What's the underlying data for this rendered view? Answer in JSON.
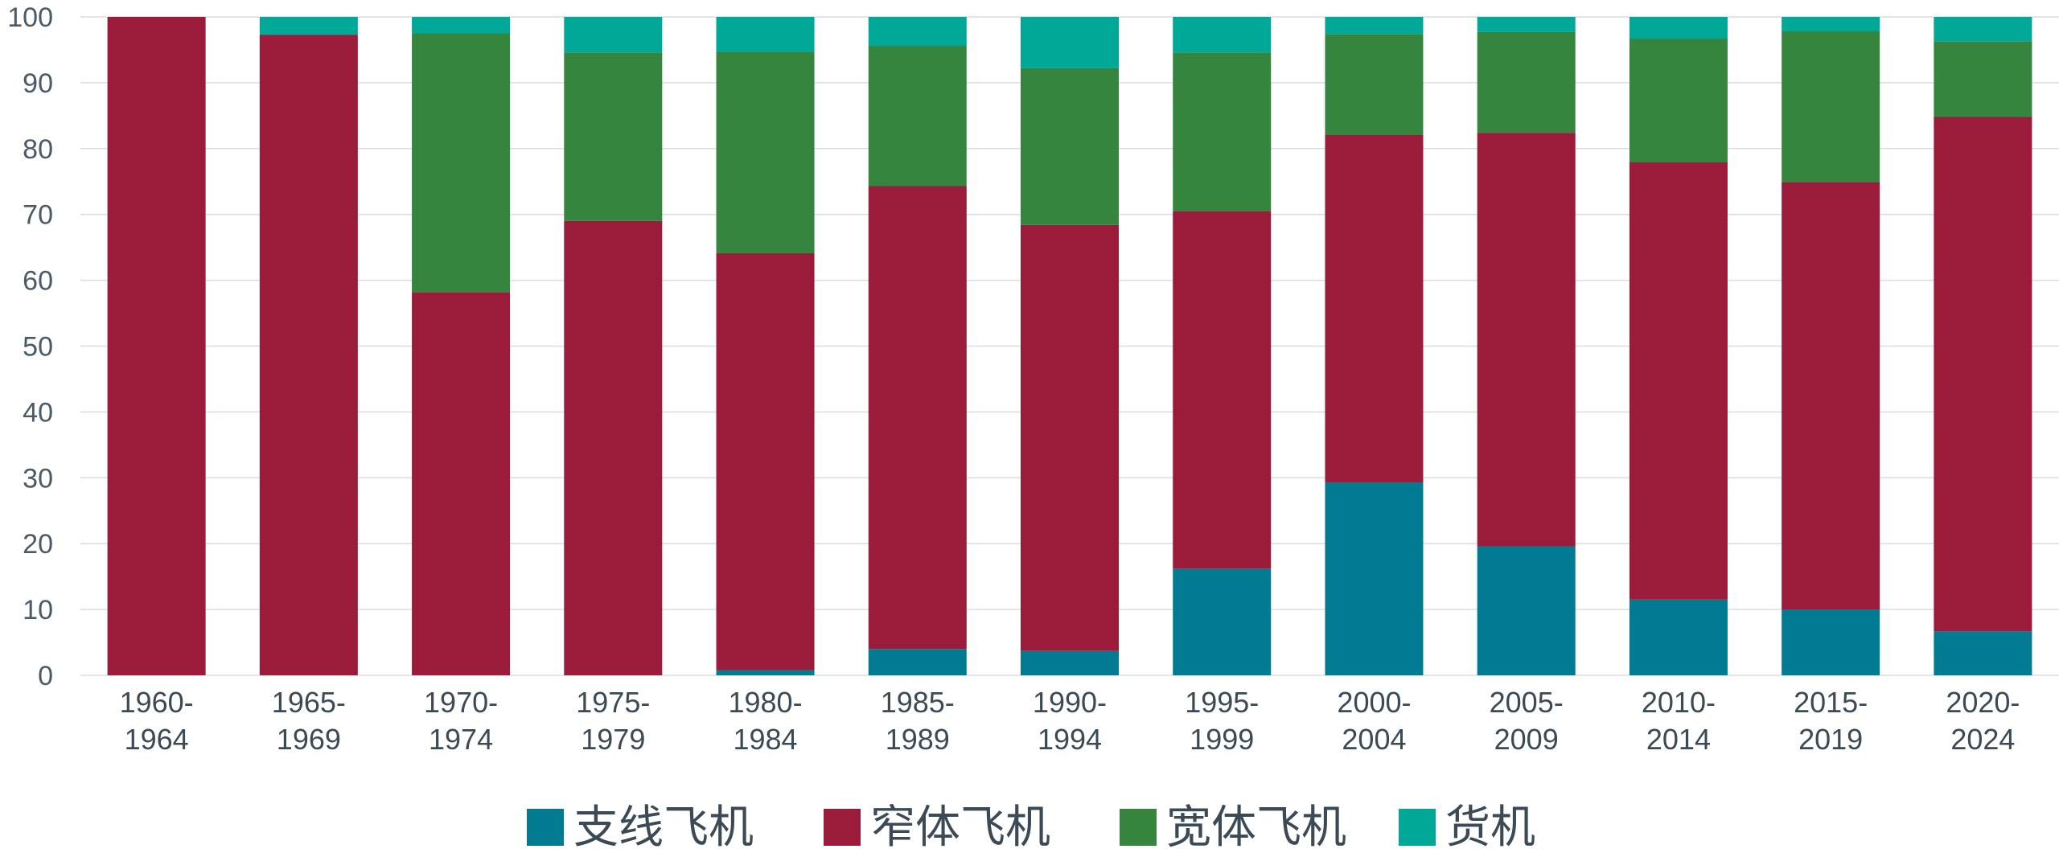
{
  "chart_data": {
    "type": "bar",
    "stacked": true,
    "categories": [
      [
        "1960-",
        "1964"
      ],
      [
        "1965-",
        "1969"
      ],
      [
        "1970-",
        "1974"
      ],
      [
        "1975-",
        "1979"
      ],
      [
        "1980-",
        "1984"
      ],
      [
        "1985-",
        "1989"
      ],
      [
        "1990-",
        "1994"
      ],
      [
        "1995-",
        "1999"
      ],
      [
        "2000-",
        "2004"
      ],
      [
        "2005-",
        "2009"
      ],
      [
        "2010-",
        "2014"
      ],
      [
        "2015-",
        "2019"
      ],
      [
        "2020-",
        "2024"
      ]
    ],
    "series": [
      {
        "name": "支线飞机",
        "color": "#007b91",
        "values": [
          0,
          0,
          0,
          0,
          0.8,
          4.0,
          3.7,
          16.2,
          29.3,
          19.6,
          11.5,
          10.0,
          6.7
        ]
      },
      {
        "name": "窄体飞机",
        "color": "#9b1b3a",
        "values": [
          100,
          97.3,
          58.2,
          69.0,
          63.3,
          70.3,
          64.7,
          54.3,
          52.8,
          62.8,
          66.4,
          64.9,
          78.1
        ]
      },
      {
        "name": "宽体飞机",
        "color": "#35853f",
        "values": [
          0,
          0,
          39.3,
          25.6,
          30.6,
          21.3,
          23.8,
          24.1,
          15.3,
          15.3,
          18.8,
          22.9,
          11.5
        ]
      },
      {
        "name": "货机",
        "color": "#00a898",
        "values": [
          0,
          2.7,
          2.5,
          5.4,
          5.3,
          4.4,
          7.8,
          5.4,
          2.6,
          2.3,
          3.3,
          2.2,
          3.7
        ]
      }
    ],
    "ylim": [
      0,
      100
    ],
    "yticks": [
      "0",
      "10",
      "20",
      "30",
      "40",
      "50",
      "60",
      "70",
      "80",
      "90",
      "100"
    ],
    "grid": true,
    "legend_position": "bottom-center"
  }
}
